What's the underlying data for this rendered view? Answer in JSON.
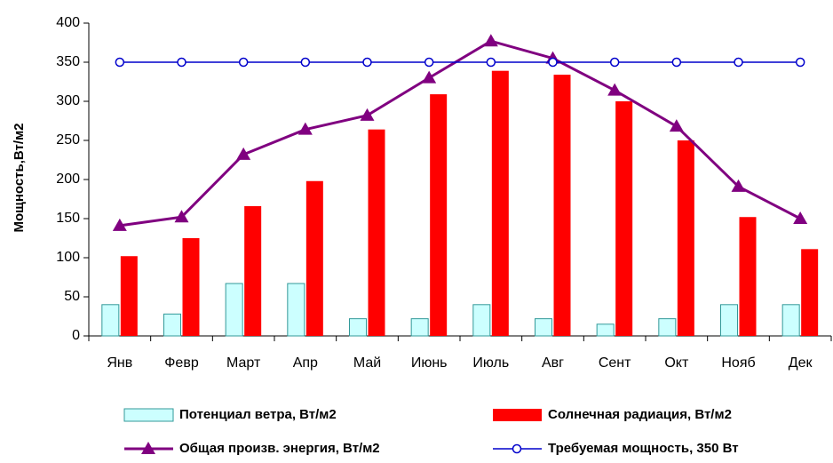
{
  "chart_data": {
    "type": "bar_line",
    "y_label": "Мощность,Вт/м2",
    "categories": [
      "Янв",
      "Февр",
      "Март",
      "Апр",
      "Май",
      "Июнь",
      "Июль",
      "Авг",
      "Сент",
      "Окт",
      "Нояб",
      "Дек"
    ],
    "series": [
      {
        "name": "Потенциал ветра, Вт/м2",
        "kind": "bar",
        "color": "#ccffff",
        "values": [
          40,
          28,
          67,
          67,
          22,
          22,
          40,
          22,
          15,
          22,
          40,
          40
        ]
      },
      {
        "name": "Солнечная радиация, Вт/м2",
        "kind": "bar",
        "color": "#ff0000",
        "values": [
          102,
          125,
          166,
          198,
          264,
          309,
          339,
          334,
          300,
          250,
          152,
          111
        ]
      },
      {
        "name": "Общая произв. энергия, Вт/м2",
        "kind": "line",
        "marker": "triangle",
        "color": "#800080",
        "values": [
          141,
          152,
          232,
          264,
          282,
          330,
          377,
          355,
          314,
          268,
          191,
          150
        ]
      },
      {
        "name": "Требуемая мощность, 350 Вт",
        "kind": "line",
        "marker": "circle",
        "color": "#0000cc",
        "values": [
          350,
          350,
          350,
          350,
          350,
          350,
          350,
          350,
          350,
          350,
          350,
          350
        ]
      }
    ],
    "ylim": [
      0,
      400
    ],
    "yticks": [
      0,
      50,
      100,
      150,
      200,
      250,
      300,
      350,
      400
    ],
    "grid": false
  }
}
